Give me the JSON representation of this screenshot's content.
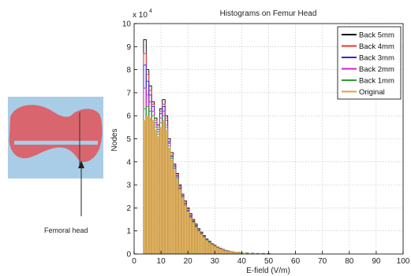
{
  "figure": {
    "inset_label": "Femoral head"
  },
  "chart_data": {
    "type": "bar",
    "title": "Histograms on Femur Head",
    "xlabel": "E-field (V/m)",
    "ylabel": "Nodes",
    "y_exponent_label": "x 10",
    "y_exponent_power": "4",
    "xlim": [
      0,
      100
    ],
    "ylim": [
      0,
      10
    ],
    "xticks": [
      0,
      10,
      20,
      30,
      40,
      50,
      60,
      70,
      80,
      90,
      100
    ],
    "yticks": [
      0,
      1,
      2,
      3,
      4,
      5,
      6,
      7,
      8,
      9,
      10
    ],
    "grid": true,
    "legend_position": "top-right",
    "bin_width": 1,
    "x": [
      4,
      5,
      6,
      7,
      8,
      9,
      10,
      11,
      12,
      13,
      14,
      15,
      16,
      17,
      18,
      19,
      20,
      21,
      22,
      23,
      24,
      25,
      26,
      27,
      28,
      29,
      30,
      31,
      32,
      33,
      34,
      35,
      36,
      37,
      38,
      39,
      40,
      42,
      44,
      46,
      48,
      50
    ],
    "series": [
      {
        "name": "Back 5mm",
        "color": "#000000",
        "values": [
          9.3,
          8.0,
          7.3,
          6.6,
          5.9,
          5.6,
          6.3,
          6.7,
          6.0,
          5.0,
          4.4,
          3.9,
          3.5,
          3.0,
          2.6,
          2.3,
          2.0,
          1.75,
          1.5,
          1.3,
          1.1,
          0.95,
          0.8,
          0.65,
          0.55,
          0.45,
          0.38,
          0.3,
          0.25,
          0.2,
          0.16,
          0.13,
          0.1,
          0.08,
          0.07,
          0.06,
          0.05,
          0.04,
          0.03,
          0.02,
          0.02,
          0.01
        ]
      },
      {
        "name": "Back 4mm",
        "color": "#e8352b",
        "values": [
          8.7,
          7.8,
          7.1,
          6.5,
          5.8,
          5.5,
          6.2,
          6.5,
          5.9,
          4.9,
          4.3,
          3.85,
          3.45,
          2.95,
          2.6,
          2.25,
          1.95,
          1.7,
          1.45,
          1.25,
          1.05,
          0.9,
          0.78,
          0.63,
          0.53,
          0.44,
          0.37,
          0.3,
          0.24,
          0.2,
          0.15,
          0.12,
          0.1,
          0.08,
          0.07,
          0.06,
          0.05,
          0.04,
          0.03,
          0.02,
          0.02,
          0.01
        ]
      },
      {
        "name": "Back 3mm",
        "color": "#2b2bd9",
        "values": [
          8.2,
          7.5,
          6.9,
          6.4,
          5.7,
          5.4,
          6.1,
          6.4,
          5.8,
          4.85,
          4.25,
          3.8,
          3.4,
          2.9,
          2.55,
          2.2,
          1.9,
          1.65,
          1.42,
          1.22,
          1.03,
          0.88,
          0.76,
          0.62,
          0.52,
          0.43,
          0.36,
          0.29,
          0.24,
          0.19,
          0.15,
          0.12,
          0.1,
          0.08,
          0.07,
          0.06,
          0.05,
          0.04,
          0.03,
          0.02,
          0.02,
          0.01
        ]
      },
      {
        "name": "Back 2mm",
        "color": "#cc22cc",
        "values": [
          7.2,
          6.9,
          6.6,
          6.2,
          5.6,
          5.3,
          5.9,
          6.2,
          5.6,
          4.8,
          4.2,
          3.75,
          3.35,
          2.85,
          2.5,
          2.15,
          1.88,
          1.62,
          1.4,
          1.2,
          1.02,
          0.87,
          0.75,
          0.61,
          0.51,
          0.42,
          0.35,
          0.28,
          0.23,
          0.19,
          0.15,
          0.12,
          0.1,
          0.08,
          0.07,
          0.06,
          0.05,
          0.04,
          0.03,
          0.02,
          0.02,
          0.01
        ]
      },
      {
        "name": "Back 1mm",
        "color": "#2e9e2e",
        "values": [
          6.3,
          6.4,
          6.2,
          6.0,
          5.5,
          5.2,
          5.7,
          6.0,
          5.5,
          4.7,
          4.15,
          3.7,
          3.3,
          2.82,
          2.47,
          2.12,
          1.85,
          1.6,
          1.38,
          1.18,
          1.0,
          0.86,
          0.74,
          0.6,
          0.5,
          0.41,
          0.34,
          0.28,
          0.23,
          0.18,
          0.14,
          0.12,
          0.1,
          0.08,
          0.07,
          0.06,
          0.05,
          0.04,
          0.03,
          0.02,
          0.02,
          0.01
        ]
      },
      {
        "name": "Original",
        "color": "#d8a24a",
        "values": [
          5.8,
          6.0,
          5.9,
          5.8,
          5.4,
          5.1,
          5.5,
          5.8,
          5.4,
          4.6,
          4.1,
          3.65,
          3.25,
          2.8,
          2.45,
          2.1,
          1.83,
          1.58,
          1.36,
          1.16,
          0.99,
          0.85,
          0.73,
          0.59,
          0.49,
          0.4,
          0.34,
          0.27,
          0.22,
          0.18,
          0.14,
          0.11,
          0.09,
          0.08,
          0.07,
          0.06,
          0.05,
          0.04,
          0.03,
          0.02,
          0.02,
          0.01
        ]
      }
    ]
  }
}
